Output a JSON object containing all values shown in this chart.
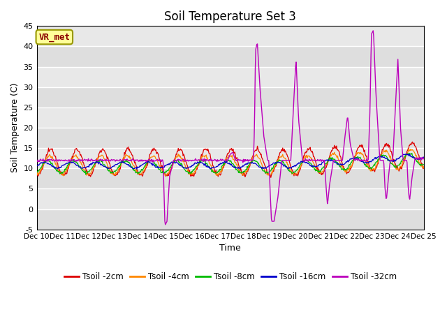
{
  "title": "Soil Temperature Set 3",
  "xlabel": "Time",
  "ylabel": "Soil Temperature (C)",
  "ylim": [
    -5,
    45
  ],
  "yticks": [
    -5,
    0,
    5,
    10,
    15,
    20,
    25,
    30,
    35,
    40,
    45
  ],
  "bg_color": "#e8e8e8",
  "legend_labels": [
    "Tsoil -2cm",
    "Tsoil -4cm",
    "Tsoil -8cm",
    "Tsoil -16cm",
    "Tsoil -32cm"
  ],
  "legend_colors": [
    "#dd0000",
    "#ff8800",
    "#00bb00",
    "#0000cc",
    "#bb00bb"
  ],
  "annotation_text": "VR_met",
  "annotation_color": "#8b0000",
  "annotation_bg": "#ffff99",
  "annotation_border": "#999900"
}
